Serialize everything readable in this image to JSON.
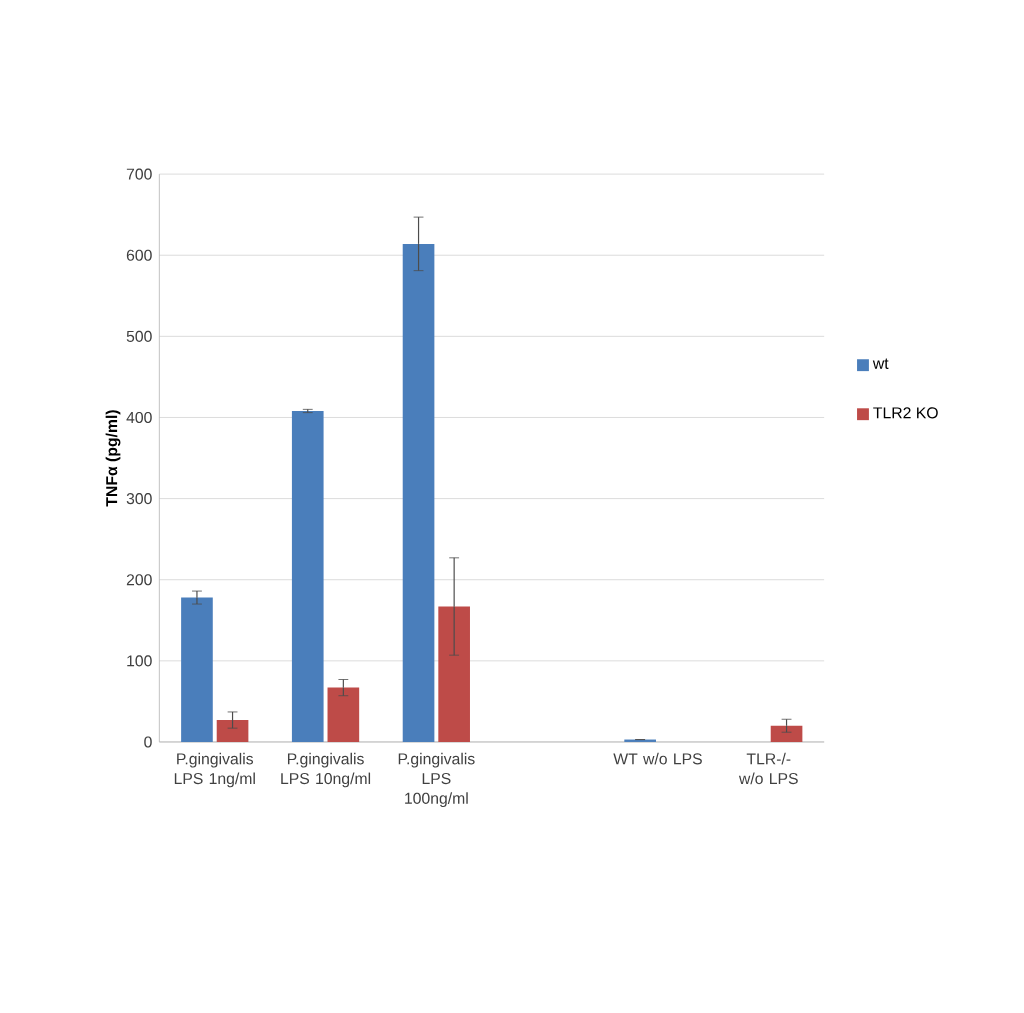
{
  "chart_data": {
    "type": "bar",
    "ylabel": "TNFα (pg/ml)",
    "categories": [
      "P.gingivalis LPS 1ng/ml",
      "P.gingivalis LPS 10ng/ml",
      "P.gingivalis LPS 100ng/ml",
      null,
      "WT w/o LPS",
      "TLR-/- w/o LPS"
    ],
    "series": [
      {
        "name": "wt",
        "color": "#4a7ebb",
        "values": [
          178,
          408,
          614,
          null,
          3,
          null
        ],
        "errors": [
          8,
          2,
          33,
          null,
          null,
          null
        ]
      },
      {
        "name": "TLR2 KO",
        "color": "#be4b48",
        "values": [
          27,
          67,
          167,
          null,
          null,
          20
        ],
        "errors": [
          10,
          10,
          60,
          null,
          null,
          8
        ]
      }
    ],
    "ylim": [
      0,
      700
    ],
    "yticks": [
      0,
      100,
      200,
      300,
      400,
      500,
      600,
      700
    ],
    "grid": "y",
    "legend": "right"
  }
}
